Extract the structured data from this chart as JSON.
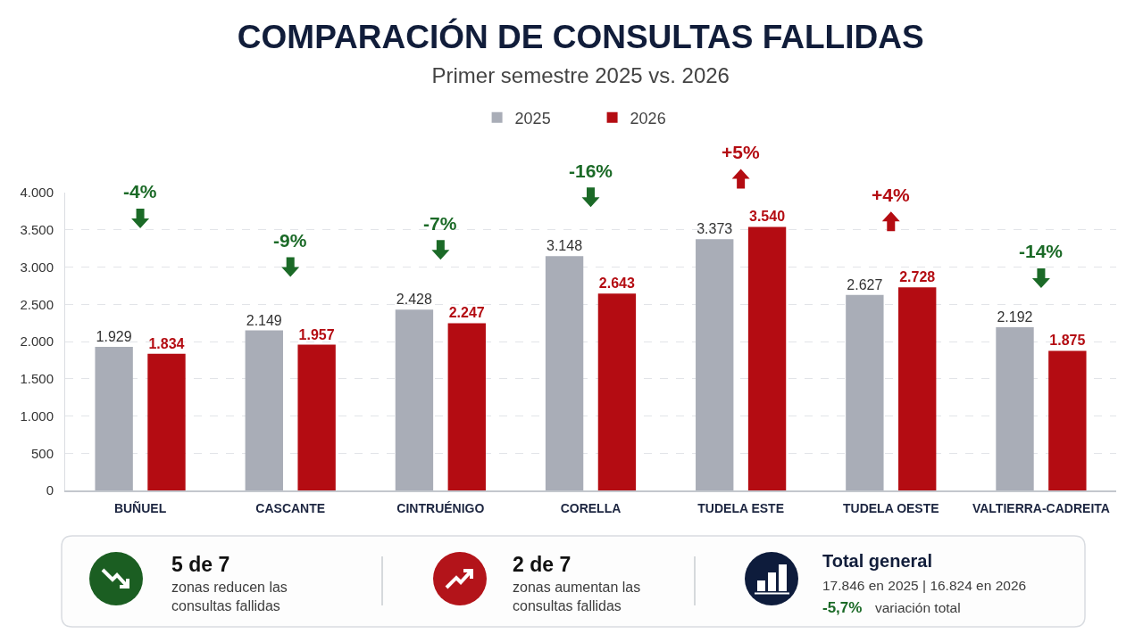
{
  "chart_data": {
    "type": "bar",
    "title": "COMPARACIÓN DE CONSULTAS FALLIDAS",
    "subtitle": "Primer semestre 2025 vs. 2026",
    "categories": [
      "BUÑUEL",
      "CASCANTE",
      "CINTRUÉNIGO",
      "CORELLA",
      "TUDELA ESTE",
      "TUDELA OESTE",
      "VALTIERRA-CADREITA"
    ],
    "series": [
      {
        "name": "2025",
        "color": "#a9adb7",
        "values": [
          1929,
          2149,
          2428,
          3148,
          3373,
          2627,
          2192
        ],
        "value_labels": [
          "1.929",
          "2.149",
          "2.428",
          "3.148",
          "3.373",
          "2.627",
          "2.192"
        ]
      },
      {
        "name": "2026",
        "color": "#b40c12",
        "values": [
          1834,
          1957,
          2247,
          2643,
          3540,
          2728,
          1875
        ],
        "value_labels": [
          "1.834",
          "1.957",
          "2.247",
          "2.643",
          "3.540",
          "2.728",
          "1.875"
        ]
      }
    ],
    "ylim": [
      0,
      4000
    ],
    "yticks": [
      0,
      500,
      {
        "value": 1000,
        "label": "1.000"
      },
      {
        "value": 1500,
        "label": "1.500"
      },
      {
        "value": 2000,
        "label": "2.000"
      },
      {
        "value": 2500,
        "label": "2.500"
      },
      {
        "value": 3000,
        "label": "3.000"
      },
      {
        "value": 3500,
        "label": "3.500"
      },
      {
        "value": 4000,
        "label": "4.000"
      }
    ],
    "grid": "y",
    "legend": "top",
    "annotations": [
      "-4%",
      "-9%",
      "-7%",
      "-16%",
      "+5%",
      "+4%",
      "-14%",
      "5 de 7",
      "zonas reducen las\nconsultas fallidas",
      "2 de 7",
      "zonas aumentan las\nconsultas fallidas",
      "Total general",
      "17.846 en 2025 | 16.824 en 2026",
      "-5,7%",
      "variación total"
    ]
  }
}
